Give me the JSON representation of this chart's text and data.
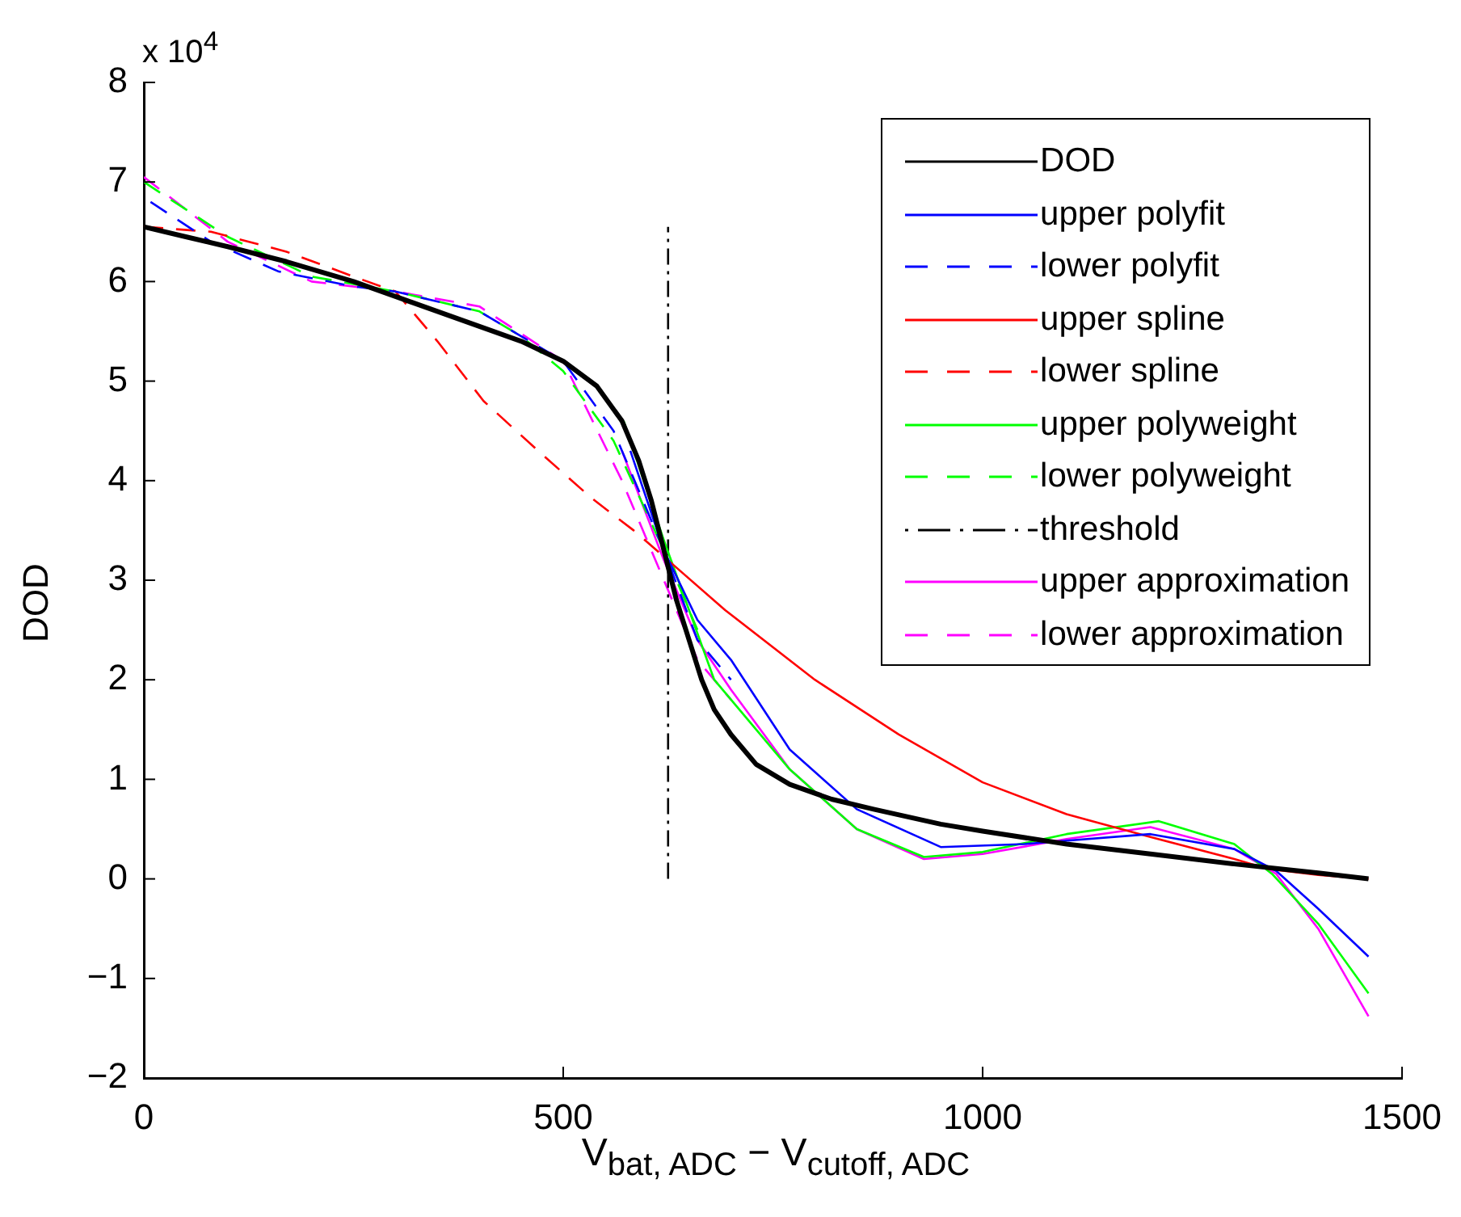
{
  "chart_data": {
    "type": "line",
    "xlabel": "V$_{bat, ADC}$ − V$_{cutoff, ADC}$",
    "ylabel": "DOD",
    "annotations": [
      "x 10$^{4}$"
    ],
    "xlim": [
      0,
      1500
    ],
    "xticks": [
      0,
      500,
      1000,
      1500
    ],
    "ylim": [
      -2,
      8
    ],
    "yticks": [
      -2,
      -1,
      0,
      1,
      2,
      3,
      4,
      5,
      6,
      7,
      8
    ],
    "grid": false,
    "legend": "top right",
    "marker": "none",
    "series": [
      {
        "name": "DOD",
        "color": "#000000",
        "line_style": "solid",
        "x": [
          0,
          50,
          100,
          170,
          250,
          300,
          350,
          400,
          450,
          500,
          540,
          570,
          590,
          605,
          620,
          635,
          650,
          665,
          680,
          700,
          730,
          770,
          820,
          870,
          950,
          1000,
          1100,
          1200,
          1300,
          1400,
          1460
        ],
        "values": [
          6.55,
          6.45,
          6.35,
          6.2,
          6.0,
          5.85,
          5.7,
          5.55,
          5.4,
          5.2,
          4.95,
          4.6,
          4.2,
          3.8,
          3.3,
          2.8,
          2.4,
          2.0,
          1.7,
          1.45,
          1.15,
          0.95,
          0.8,
          0.7,
          0.55,
          0.48,
          0.35,
          0.25,
          0.15,
          0.06,
          0.0
        ]
      },
      {
        "name": "upper polyfit",
        "color": "#0000ff",
        "line_style": "solid",
        "x": [
          580,
          620,
          660,
          700,
          770,
          850,
          950,
          1050,
          1200,
          1300,
          1350,
          1400,
          1460
        ],
        "values": [
          4.3,
          3.3,
          2.6,
          2.2,
          1.3,
          0.7,
          0.32,
          0.35,
          0.45,
          0.3,
          0.08,
          -0.3,
          -0.78
        ]
      },
      {
        "name": "lower polyfit",
        "color": "#0000ff",
        "line_style": "dashed",
        "x": [
          8,
          80,
          161,
          250,
          300,
          400,
          500,
          560,
          620,
          660,
          700
        ],
        "values": [
          6.8,
          6.4,
          6.1,
          5.95,
          5.9,
          5.7,
          5.2,
          4.5,
          3.3,
          2.4,
          2.0
        ]
      },
      {
        "name": "upper spline",
        "color": "#ff0000",
        "line_style": "solid",
        "x": [
          625,
          693,
          800,
          900,
          1000,
          1100,
          1200,
          1300,
          1340,
          1400,
          1460
        ],
        "values": [
          3.2,
          2.7,
          2.0,
          1.45,
          0.97,
          0.65,
          0.42,
          0.2,
          0.1,
          0.04,
          0.0
        ]
      },
      {
        "name": "lower spline",
        "color": "#ff0000",
        "line_style": "dashed",
        "x": [
          0,
          80,
          170,
          250,
          300,
          350,
          405,
          470,
          533,
          584,
          625
        ],
        "values": [
          6.55,
          6.5,
          6.3,
          6.05,
          5.9,
          5.4,
          4.8,
          4.3,
          3.83,
          3.5,
          3.2
        ]
      },
      {
        "name": "upper polyweight",
        "color": "#00ff00",
        "line_style": "solid",
        "x": [
          572,
          620,
          680,
          770,
          850,
          930,
          1000,
          1100,
          1210,
          1300,
          1345,
          1400,
          1460
        ],
        "values": [
          4.6,
          3.4,
          2.0,
          1.1,
          0.5,
          0.22,
          0.27,
          0.45,
          0.58,
          0.35,
          0.05,
          -0.45,
          -1.15
        ]
      },
      {
        "name": "lower polyweight",
        "color": "#00ff00",
        "line_style": "dashed",
        "x": [
          0,
          100,
          200,
          300,
          400,
          450,
          500,
          560,
          620,
          660
        ],
        "values": [
          7.0,
          6.45,
          6.05,
          5.9,
          5.7,
          5.45,
          5.1,
          4.4,
          3.3,
          2.5
        ]
      },
      {
        "name": "threshold",
        "color": "#000000",
        "line_style": "dashdot",
        "x": [
          625,
          625
        ],
        "values": [
          0,
          6.55
        ]
      },
      {
        "name": "upper approximation",
        "color": "#ff00ff",
        "line_style": "solid",
        "x": [
          570,
          620,
          660,
          700,
          770,
          850,
          930,
          1000,
          1100,
          1200,
          1300,
          1350,
          1400,
          1460
        ],
        "values": [
          4.3,
          3.2,
          2.4,
          1.9,
          1.1,
          0.5,
          0.2,
          0.25,
          0.4,
          0.52,
          0.3,
          0.05,
          -0.5,
          -1.38
        ]
      },
      {
        "name": "lower approximation",
        "color": "#ff00ff",
        "line_style": "dashed",
        "x": [
          0,
          100,
          200,
          300,
          400,
          500,
          570,
          620,
          660,
          700
        ],
        "values": [
          7.05,
          6.4,
          6.0,
          5.9,
          5.75,
          5.2,
          4.0,
          3.0,
          2.2,
          1.8
        ]
      }
    ]
  }
}
